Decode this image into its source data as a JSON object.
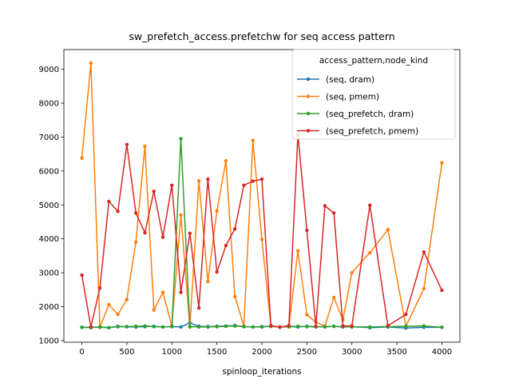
{
  "chart_data": {
    "type": "line",
    "title": "sw_prefetch_access.prefetchw for seq access pattern",
    "xlabel": "spinloop_iterations",
    "ylabel": "",
    "xlim": [
      -200,
      4200
    ],
    "ylim": [
      950,
      9580
    ],
    "xticks": [
      0,
      500,
      1000,
      1500,
      2000,
      2500,
      3000,
      3500,
      4000
    ],
    "yticks": [
      1000,
      2000,
      3000,
      4000,
      5000,
      6000,
      7000,
      8000,
      9000
    ],
    "grid": false,
    "legend": {
      "title": "access_pattern,node_kind",
      "placement": "top-right"
    },
    "series": [
      {
        "name": "(seq, dram)",
        "color": "#1f77b4",
        "x": [
          0,
          100,
          200,
          300,
          400,
          500,
          600,
          700,
          800,
          900,
          1000,
          1100,
          1200,
          1300,
          1400,
          1500,
          1600,
          1700,
          1800,
          1900,
          2000,
          2100,
          2200,
          2300,
          2400,
          2500,
          2600,
          2700,
          2800,
          2900,
          3000,
          3200,
          3400,
          3600,
          3800,
          4000
        ],
        "y": [
          1390,
          1395,
          1390,
          1380,
          1410,
          1405,
          1400,
          1410,
          1420,
          1400,
          1410,
          1400,
          1520,
          1420,
          1410,
          1420,
          1430,
          1440,
          1410,
          1400,
          1410,
          1420,
          1400,
          1410,
          1400,
          1420,
          1410,
          1400,
          1420,
          1400,
          1410,
          1380,
          1400,
          1370,
          1390,
          1390
        ]
      },
      {
        "name": "(seq, pmem)",
        "color": "#ff7f0e",
        "x": [
          0,
          100,
          200,
          300,
          400,
          500,
          600,
          700,
          800,
          900,
          1000,
          1100,
          1200,
          1300,
          1400,
          1500,
          1600,
          1700,
          1800,
          1900,
          2000,
          2100,
          2200,
          2300,
          2400,
          2500,
          2600,
          2700,
          2800,
          2900,
          3000,
          3200,
          3400,
          3600,
          3800,
          4000
        ],
        "y": [
          6380,
          9180,
          1390,
          2060,
          1770,
          2210,
          3900,
          6730,
          1900,
          2420,
          1430,
          4700,
          1400,
          5710,
          2740,
          4820,
          6300,
          2300,
          1430,
          6900,
          3980,
          1420,
          1400,
          1400,
          3640,
          1760,
          1540,
          1420,
          2270,
          1610,
          3000,
          3590,
          4270,
          1420,
          2530,
          6240
        ]
      },
      {
        "name": "(seq_prefetch, dram)",
        "color": "#2ca02c",
        "x": [
          0,
          100,
          200,
          300,
          400,
          500,
          600,
          700,
          800,
          900,
          1000,
          1100,
          1200,
          1300,
          1400,
          1500,
          1600,
          1700,
          1800,
          1900,
          2000,
          2100,
          2200,
          2300,
          2400,
          2500,
          2600,
          2700,
          2800,
          2900,
          3000,
          3200,
          3400,
          3600,
          3800,
          4000
        ],
        "y": [
          1390,
          1380,
          1400,
          1380,
          1420,
          1410,
          1420,
          1430,
          1410,
          1400,
          1410,
          6950,
          1410,
          1400,
          1400,
          1410,
          1420,
          1430,
          1410,
          1400,
          1400,
          1420,
          1400,
          1410,
          1420,
          1410,
          1400,
          1410,
          1420,
          1410,
          1400,
          1400,
          1410,
          1420,
          1430,
          1390
        ]
      },
      {
        "name": "(seq_prefetch, pmem)",
        "color": "#d62728",
        "x": [
          0,
          100,
          200,
          300,
          400,
          500,
          600,
          700,
          800,
          900,
          1000,
          1100,
          1200,
          1300,
          1400,
          1500,
          1600,
          1700,
          1800,
          1900,
          2000,
          2100,
          2200,
          2300,
          2400,
          2500,
          2600,
          2700,
          2800,
          2900,
          3000,
          3200,
          3400,
          3600,
          3800,
          4000
        ],
        "y": [
          2930,
          1400,
          2550,
          5100,
          4810,
          6780,
          4760,
          4180,
          5400,
          4050,
          5580,
          2420,
          4160,
          1960,
          5760,
          3020,
          3800,
          4290,
          5580,
          5700,
          5760,
          1440,
          1390,
          1440,
          7060,
          4250,
          1420,
          4970,
          4760,
          1430,
          1430,
          4990,
          1440,
          1770,
          3610,
          2480
        ]
      }
    ]
  }
}
